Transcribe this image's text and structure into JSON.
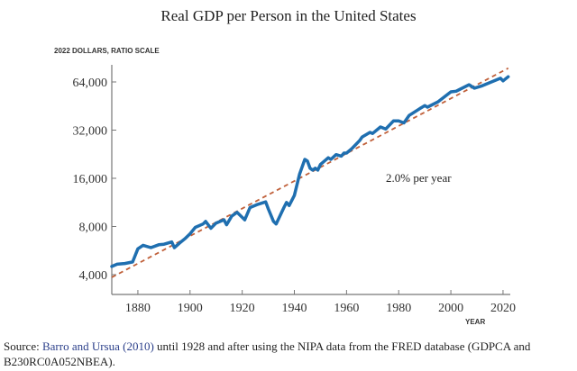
{
  "chart_data": {
    "type": "line",
    "title": "Real GDP per Person in the United States",
    "ylabel": "2022 DOLLARS, RATIO SCALE",
    "xlabel": "YEAR",
    "yscale": "log2",
    "xlim": [
      1870,
      2022
    ],
    "ylim": [
      3300,
      82000
    ],
    "yticks": [
      4000,
      8000,
      16000,
      32000,
      64000
    ],
    "ytick_labels": [
      "4,000",
      "8,000",
      "16,000",
      "32,000",
      "64,000"
    ],
    "xticks": [
      1880,
      1900,
      1920,
      1940,
      1960,
      1980,
      2000,
      2020
    ],
    "xtick_labels": [
      "1880",
      "1900",
      "1920",
      "1940",
      "1960",
      "1980",
      "2000",
      "2020"
    ],
    "grid": false,
    "series": [
      {
        "color": "#1f6fb0",
        "style": "solid",
        "points": [
          [
            1870,
            4500
          ],
          [
            1872,
            4650
          ],
          [
            1875,
            4700
          ],
          [
            1878,
            4800
          ],
          [
            1880,
            5800
          ],
          [
            1882,
            6100
          ],
          [
            1885,
            5900
          ],
          [
            1888,
            6150
          ],
          [
            1890,
            6200
          ],
          [
            1893,
            6400
          ],
          [
            1894,
            5900
          ],
          [
            1896,
            6300
          ],
          [
            1898,
            6700
          ],
          [
            1900,
            7200
          ],
          [
            1902,
            7900
          ],
          [
            1905,
            8300
          ],
          [
            1906,
            8600
          ],
          [
            1908,
            7800
          ],
          [
            1910,
            8400
          ],
          [
            1913,
            8800
          ],
          [
            1914,
            8200
          ],
          [
            1916,
            9300
          ],
          [
            1918,
            9800
          ],
          [
            1921,
            8800
          ],
          [
            1923,
            10500
          ],
          [
            1926,
            11000
          ],
          [
            1929,
            11400
          ],
          [
            1930,
            10300
          ],
          [
            1932,
            8600
          ],
          [
            1933,
            8300
          ],
          [
            1936,
            10500
          ],
          [
            1937,
            11300
          ],
          [
            1938,
            10800
          ],
          [
            1940,
            12500
          ],
          [
            1942,
            17000
          ],
          [
            1944,
            21000
          ],
          [
            1945,
            20500
          ],
          [
            1946,
            18500
          ],
          [
            1947,
            18000
          ],
          [
            1948,
            18500
          ],
          [
            1949,
            18000
          ],
          [
            1950,
            19500
          ],
          [
            1953,
            21500
          ],
          [
            1954,
            21000
          ],
          [
            1956,
            22500
          ],
          [
            1958,
            22000
          ],
          [
            1959,
            23000
          ],
          [
            1960,
            23000
          ],
          [
            1962,
            24500
          ],
          [
            1965,
            27500
          ],
          [
            1966,
            29000
          ],
          [
            1969,
            31000
          ],
          [
            1970,
            30500
          ],
          [
            1973,
            33500
          ],
          [
            1975,
            32500
          ],
          [
            1978,
            36500
          ],
          [
            1980,
            36500
          ],
          [
            1982,
            35500
          ],
          [
            1984,
            39500
          ],
          [
            1988,
            43500
          ],
          [
            1990,
            45500
          ],
          [
            1991,
            44500
          ],
          [
            1995,
            48000
          ],
          [
            2000,
            55500
          ],
          [
            2002,
            56000
          ],
          [
            2007,
            61500
          ],
          [
            2009,
            58500
          ],
          [
            2012,
            60500
          ],
          [
            2019,
            67500
          ],
          [
            2020,
            65000
          ],
          [
            2022,
            69000
          ]
        ]
      },
      {
        "color": "#c0603a",
        "style": "dashed",
        "points": [
          [
            1870,
            3850
          ],
          [
            2022,
            78000
          ]
        ]
      }
    ],
    "annotations": [
      "2.0% per year"
    ]
  },
  "source": {
    "prefix": "Source: ",
    "citation": "Barro and Ursua (2010)",
    "text": " until 1928 and after using the NIPA data from the FRED database (GDPCA and B230RC0A052NBEA)."
  }
}
